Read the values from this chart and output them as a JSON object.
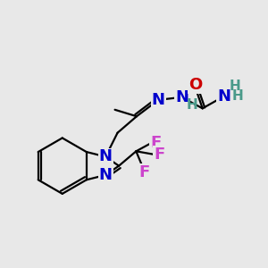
{
  "background_color": "#e8e8e8",
  "atom_colors": {
    "N_blue": "#0000cc",
    "N_teal": "#4a9a8a",
    "O": "#cc0000",
    "F": "#cc44cc"
  },
  "bond_color": "#000000",
  "bond_lw": 1.6,
  "font_size": 13,
  "font_size_H": 11,
  "xlim": [
    0,
    10
  ],
  "ylim": [
    0,
    10
  ]
}
